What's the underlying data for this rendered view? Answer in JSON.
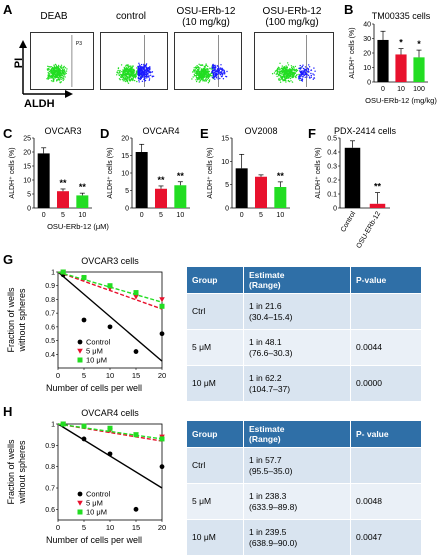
{
  "panels": {
    "A": "A",
    "B": "B",
    "C": "C",
    "D": "D",
    "E": "E",
    "F": "F",
    "G": "G",
    "H": "H"
  },
  "flow": {
    "titles": [
      "DEAB",
      "control",
      "OSU-ERb-12\n(10 mg/kg)",
      "OSU-ERb-12\n(100 mg/kg)"
    ],
    "gate_label": "P3",
    "y_axis": "PI",
    "x_axis": "ALDH"
  },
  "colors": {
    "black": "#000000",
    "red": "#e8112d",
    "green": "#22dd22",
    "blue": "#1a1aff",
    "table_header": "#2f6fa7"
  },
  "chart_data": [
    {
      "id": "B",
      "type": "bar",
      "title": "TM00335 cells",
      "categories": [
        "0",
        "10",
        "100"
      ],
      "values": [
        29,
        19,
        17
      ],
      "errors": [
        6,
        4,
        5
      ],
      "sig": [
        "",
        "*",
        "*"
      ],
      "ylabel": "ALDH⁺ cells (%)",
      "xlabel": "OSU-ERb-12 (mg/kg)",
      "ylim": [
        0,
        40
      ],
      "yticks": [
        0,
        10,
        20,
        30,
        40
      ],
      "colors": [
        "#000000",
        "#e8112d",
        "#22dd22"
      ]
    },
    {
      "id": "C",
      "type": "bar",
      "title": "OVCAR3",
      "categories": [
        "0",
        "5",
        "10"
      ],
      "values": [
        19.5,
        6,
        4.5
      ],
      "errors": [
        2,
        0.8,
        0.8
      ],
      "sig": [
        "",
        "**",
        "**"
      ],
      "ylabel": "ALDH⁺ cells (%)",
      "xlabel": "OSU-ERb-12 (μM)",
      "ylim": [
        0,
        25
      ],
      "yticks": [
        0,
        5,
        10,
        15,
        20,
        25
      ],
      "colors": [
        "#000000",
        "#e8112d",
        "#22dd22"
      ]
    },
    {
      "id": "D",
      "type": "bar",
      "title": "OVCAR4",
      "categories": [
        "0",
        "5",
        "10"
      ],
      "values": [
        16,
        5.5,
        6.5
      ],
      "errors": [
        2.2,
        0.8,
        1
      ],
      "sig": [
        "",
        "**",
        "**"
      ],
      "ylabel": "ALDH⁺ cells (%)",
      "xlabel": "",
      "ylim": [
        0,
        20
      ],
      "yticks": [
        0,
        5,
        10,
        15,
        20
      ],
      "colors": [
        "#000000",
        "#e8112d",
        "#22dd22"
      ]
    },
    {
      "id": "E",
      "type": "bar",
      "title": "OV2008",
      "categories": [
        "0",
        "5",
        "10"
      ],
      "values": [
        8.5,
        6.7,
        4.5
      ],
      "errors": [
        3,
        0.4,
        1.1
      ],
      "sig": [
        "",
        "",
        "**"
      ],
      "ylabel": "ALDH⁺ cells (%)",
      "xlabel": "",
      "ylim": [
        0,
        15
      ],
      "yticks": [
        0,
        5,
        10,
        15
      ],
      "colors": [
        "#000000",
        "#e8112d",
        "#22dd22"
      ]
    },
    {
      "id": "F",
      "type": "bar",
      "title": "PDX-2414 cells",
      "categories": [
        "Control",
        "OSU-ERb-12"
      ],
      "values": [
        0.43,
        0.03
      ],
      "errors": [
        0.05,
        0.08
      ],
      "sig": [
        "",
        "**"
      ],
      "ylabel": "ALDH⁺ cells (%)",
      "xlabel": "",
      "ylim": [
        0,
        0.5
      ],
      "yticks": [
        0,
        0.1,
        0.2,
        0.3,
        0.4,
        0.5
      ],
      "colors": [
        "#000000",
        "#e8112d"
      ]
    },
    {
      "id": "G",
      "type": "scatter",
      "title": "OVCAR3 cells",
      "xlabel": "Number of cells per well",
      "ylabel": "Fraction of wells\nwithout spheres",
      "xlim": [
        0,
        20
      ],
      "ylim": [
        0.3,
        1.0
      ],
      "xticks": [
        0,
        5,
        10,
        15,
        20
      ],
      "yticks": [
        0.4,
        0.5,
        0.6,
        0.7,
        0.8,
        0.9,
        1.0
      ],
      "series": [
        {
          "name": "Control",
          "color": "#000000",
          "marker": "circle",
          "points": [
            [
              1,
              0.98
            ],
            [
              5,
              0.65
            ],
            [
              10,
              0.6
            ],
            [
              15,
              0.42
            ],
            [
              20,
              0.55
            ]
          ],
          "fit": [
            [
              0,
              1.0
            ],
            [
              20,
              0.35
            ]
          ]
        },
        {
          "name": "5 μM",
          "color": "#e8112d",
          "marker": "triangle",
          "points": [
            [
              1,
              1.0
            ],
            [
              5,
              0.95
            ],
            [
              10,
              0.88
            ],
            [
              15,
              0.82
            ],
            [
              20,
              0.8
            ]
          ],
          "fit": [
            [
              0,
              1.0
            ],
            [
              20,
              0.73
            ]
          ]
        },
        {
          "name": "10 μM",
          "color": "#22dd22",
          "marker": "square",
          "points": [
            [
              1,
              1.0
            ],
            [
              5,
              0.96
            ],
            [
              10,
              0.9
            ],
            [
              15,
              0.85
            ],
            [
              20,
              0.75
            ]
          ],
          "fit": [
            [
              0,
              1.0
            ],
            [
              20,
              0.78
            ]
          ]
        }
      ]
    },
    {
      "id": "H",
      "type": "scatter",
      "title": "OVCAR4 cells",
      "xlabel": "Number of cells per well",
      "ylabel": "Fraction of wells\nwithout spheres",
      "xlim": [
        0,
        20
      ],
      "ylim": [
        0.55,
        1.0
      ],
      "xticks": [
        0,
        5,
        10,
        15,
        20
      ],
      "yticks": [
        0.6,
        0.7,
        0.8,
        0.9,
        1.0
      ],
      "series": [
        {
          "name": "Control",
          "color": "#000000",
          "marker": "circle",
          "points": [
            [
              1,
              1.0
            ],
            [
              5,
              0.93
            ],
            [
              10,
              0.86
            ],
            [
              15,
              0.6
            ],
            [
              20,
              0.8
            ]
          ],
          "fit": [
            [
              0,
              1.0
            ],
            [
              20,
              0.7
            ]
          ]
        },
        {
          "name": "5 μM",
          "color": "#e8112d",
          "marker": "triangle",
          "points": [
            [
              1,
              1.0
            ],
            [
              5,
              0.99
            ],
            [
              10,
              0.97
            ],
            [
              15,
              0.95
            ],
            [
              20,
              0.94
            ]
          ],
          "fit": [
            [
              0,
              1.0
            ],
            [
              20,
              0.92
            ]
          ]
        },
        {
          "name": "10 μM",
          "color": "#22dd22",
          "marker": "square",
          "points": [
            [
              1,
              1.0
            ],
            [
              5,
              0.99
            ],
            [
              10,
              0.98
            ],
            [
              15,
              0.95
            ],
            [
              20,
              0.93
            ]
          ],
          "fit": [
            [
              0,
              1.0
            ],
            [
              20,
              0.93
            ]
          ]
        }
      ]
    }
  ],
  "tables": {
    "G": {
      "headers": [
        "Group",
        "Estimate\n(Range)",
        "P-value"
      ],
      "rows": [
        [
          "Ctrl",
          "1 in 21.6\n(30.4–15.4)",
          ""
        ],
        [
          "5 μM",
          "1 in 48.1\n(76.6–30.3)",
          "0.0044"
        ],
        [
          "10 μM",
          "1 in 62.2\n(104.7–37)",
          "0.0000"
        ]
      ]
    },
    "H": {
      "headers": [
        "Group",
        "Estimate\n(Range)",
        "P- value"
      ],
      "rows": [
        [
          "Ctrl",
          "1 in 57.7\n(95.5–35.0)",
          ""
        ],
        [
          "5 μM",
          "1 in 238.3\n(633.9–89.8)",
          "0.0048"
        ],
        [
          "10 μM",
          "1 in 239.5\n(638.9–90.0)",
          "0.0047"
        ]
      ]
    }
  }
}
